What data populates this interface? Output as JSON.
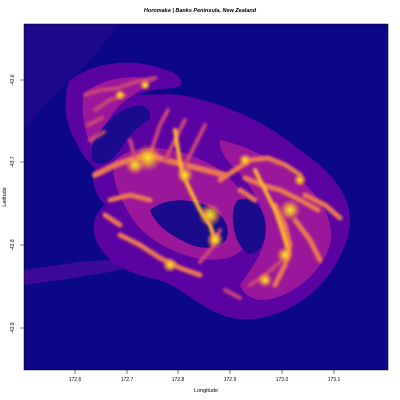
{
  "title": "Horomaka | Banks Peninsula, New Zealand",
  "xlabel": "Longitude",
  "ylabel": "Latitude",
  "x_ticks": [
    "172.6",
    "172.7",
    "172.8",
    "172.9",
    "173.0",
    "173.1"
  ],
  "y_ticks": [
    "-43.6",
    "-43.7",
    "-43.8",
    "-43.9"
  ],
  "colors": {
    "background_land": "#1a0a8c",
    "ocean": "#0c0786",
    "low_elevation": "#5b02a3",
    "mid_low": "#9a179b",
    "mid": "#cb4678",
    "mid_high": "#eb7852",
    "high": "#fbb32f",
    "peak": "#f0f921"
  },
  "colorscale": "plasma",
  "map": {
    "region": "Banks Peninsula",
    "x_range": [
      172.52,
      173.2
    ],
    "y_range": [
      -43.97,
      -43.52
    ]
  }
}
